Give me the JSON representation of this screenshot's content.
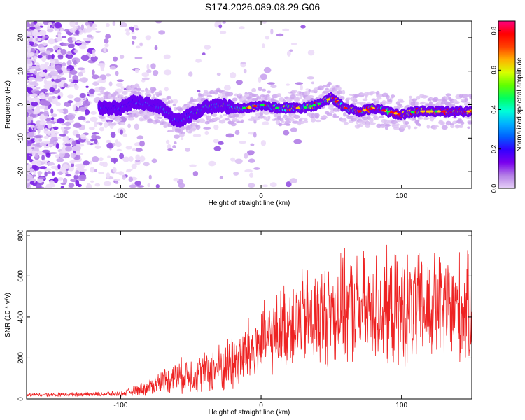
{
  "title": "S174.2026.089.08.29.G06",
  "chart_data": [
    {
      "type": "heatmap",
      "name": "spectrogram",
      "xlabel": "Height of straight line (km)",
      "ylabel": "Frequency (Hz)",
      "xlim": [
        -167,
        150
      ],
      "ylim": [
        -25,
        25
      ],
      "xticks": [
        -100,
        0,
        100
      ],
      "yticks": [
        -20,
        -10,
        0,
        10,
        20
      ],
      "colorbar": {
        "label": "Normalized spectral amplitude",
        "range": [
          0.0,
          0.85
        ],
        "ticks": [
          "0.0",
          "0.2",
          "0.4",
          "0.6",
          "0.8"
        ],
        "colors": [
          "#e6d0f7",
          "#b47fe6",
          "#7a00ee",
          "#3300ff",
          "#0060ff",
          "#00b0ff",
          "#00ffd8",
          "#00ff60",
          "#60ff00",
          "#d8ff00",
          "#ffb000",
          "#ff4000",
          "#ff0000",
          "#ff0080"
        ]
      },
      "ridge": {
        "x": [
          -115,
          -100,
          -90,
          -80,
          -70,
          -60,
          -50,
          -40,
          -30,
          -20,
          -10,
          0,
          10,
          20,
          30,
          40,
          50,
          60,
          70,
          80,
          90,
          100,
          110,
          120,
          130,
          140,
          148
        ],
        "freq": [
          -1,
          -1,
          1,
          0,
          -1,
          -5,
          -3,
          -1,
          0,
          -1,
          -1,
          0,
          -1,
          -1,
          -1,
          0,
          2,
          -1,
          -2,
          -1,
          -2,
          -3,
          -2,
          -2,
          -2,
          -2,
          -2
        ]
      }
    },
    {
      "type": "line",
      "name": "snr",
      "xlabel": "Height of straight line (km)",
      "ylabel": "SNR (10 * v/v)",
      "color": "#ee2222",
      "xlim": [
        -167,
        150
      ],
      "ylim": [
        0,
        820
      ],
      "xticks": [
        -100,
        0,
        100
      ],
      "yticks": [
        0,
        200,
        400,
        600,
        800
      ],
      "x_range": [
        -167,
        150
      ],
      "envelope": {
        "x": [
          -167,
          -100,
          -90,
          -80,
          -70,
          -60,
          -50,
          -40,
          -30,
          -20,
          -10,
          0,
          10,
          20,
          30,
          40,
          50,
          60,
          80,
          100,
          120,
          140,
          150
        ],
        "mean": [
          20,
          25,
          40,
          55,
          90,
          110,
          120,
          130,
          150,
          180,
          220,
          270,
          320,
          370,
          390,
          400,
          420,
          430,
          440,
          430,
          440,
          440,
          430
        ],
        "spread": [
          8,
          12,
          25,
          40,
          60,
          80,
          90,
          100,
          120,
          150,
          170,
          180,
          190,
          220,
          240,
          250,
          260,
          270,
          280,
          280,
          270,
          280,
          260
        ]
      }
    }
  ]
}
